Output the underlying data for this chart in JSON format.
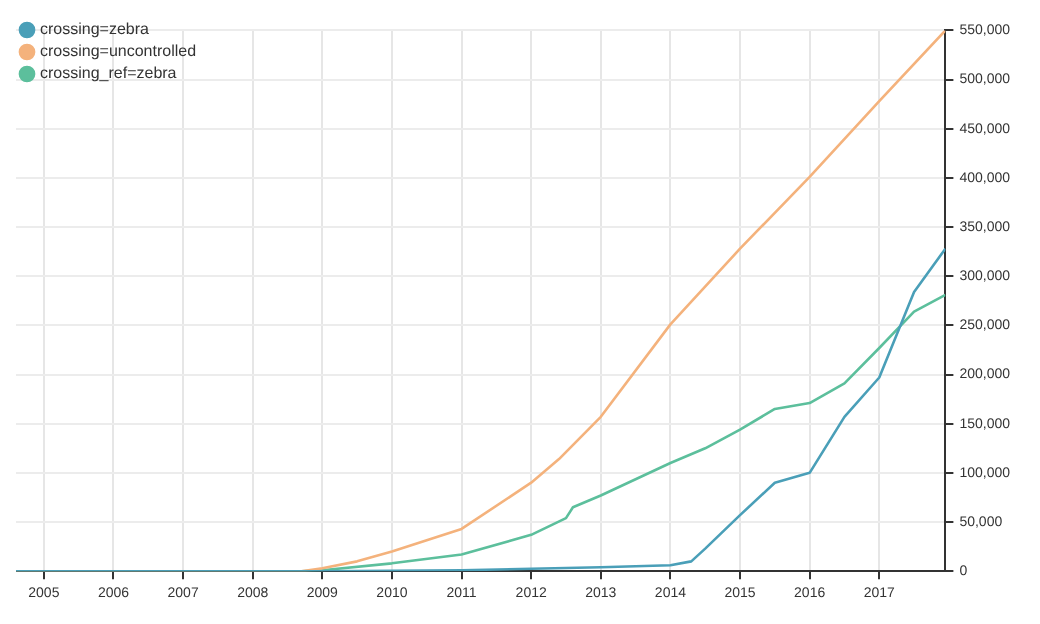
{
  "chart_data": {
    "type": "line",
    "legend": "top left",
    "grid": true,
    "marker": "none",
    "line_style": "solid",
    "xlim": [
      2004.6,
      2017.95
    ],
    "xticks": [
      2005,
      2006,
      2007,
      2008,
      2009,
      2010,
      2011,
      2012,
      2013,
      2014,
      2015,
      2016,
      2017
    ],
    "ylim": [
      0,
      550000
    ],
    "yticks": [
      0,
      {
        "value": 50000,
        "label": "50,000"
      },
      {
        "value": 100000,
        "label": "100,000"
      },
      {
        "value": 150000,
        "label": "150,000"
      },
      {
        "value": 200000,
        "label": "200,000"
      },
      {
        "value": 250000,
        "label": "250,000"
      },
      {
        "value": 300000,
        "label": "300,000"
      },
      {
        "value": 350000,
        "label": "350,000"
      },
      {
        "value": 400000,
        "label": "400,000"
      },
      {
        "value": 450000,
        "label": "450,000"
      },
      {
        "value": 500000,
        "label": "500,000"
      },
      {
        "value": 550000,
        "label": "550,000"
      }
    ],
    "series": [
      {
        "name": "crossing=zebra",
        "color": "#4a9fb8",
        "x": [
          2004.6,
          2009,
          2011,
          2013,
          2014,
          2014.3,
          2014.5,
          2015,
          2015.5,
          2016,
          2016.5,
          2017,
          2017.5,
          2017.95
        ],
        "values": [
          0,
          0,
          1000,
          4000,
          6000,
          10000,
          23000,
          57000,
          90000,
          100000,
          157000,
          197000,
          284000,
          328000
        ]
      },
      {
        "name": "crossing=uncontrolled",
        "color": "#f4b27c",
        "x": [
          2004.6,
          2008.7,
          2009,
          2009.5,
          2010,
          2011,
          2012,
          2012.4,
          2013,
          2014,
          2015,
          2016,
          2017,
          2017.95
        ],
        "values": [
          0,
          0,
          3000,
          10000,
          20000,
          43000,
          90000,
          114000,
          157000,
          251000,
          328000,
          401000,
          478000,
          550000
        ]
      },
      {
        "name": "crossing_ref=zebra",
        "color": "#5cbf9c",
        "x": [
          2004.6,
          2008.7,
          2009,
          2010,
          2011,
          2012,
          2012.5,
          2012.6,
          2013,
          2014,
          2014.5,
          2015,
          2015.5,
          2016,
          2016.5,
          2017,
          2017.5,
          2017.95
        ],
        "values": [
          0,
          0,
          1000,
          8000,
          17000,
          37000,
          54000,
          65000,
          77000,
          110000,
          125000,
          144000,
          165000,
          171000,
          191000,
          227000,
          264000,
          281000
        ]
      }
    ]
  }
}
